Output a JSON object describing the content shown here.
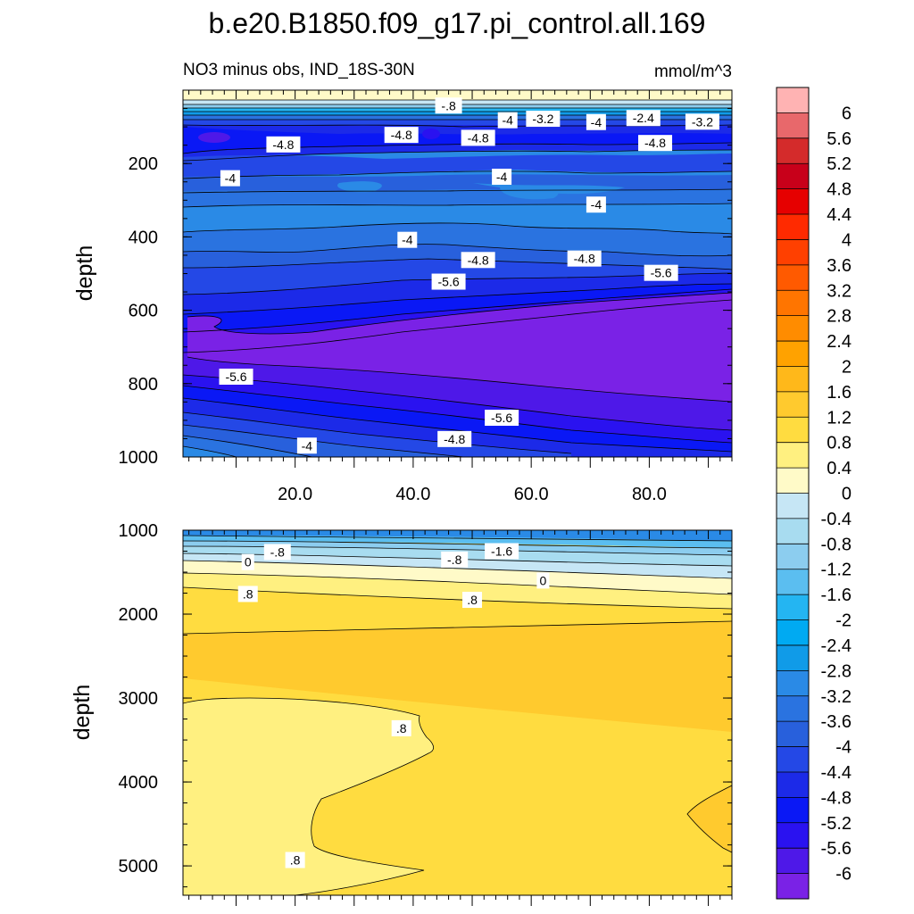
{
  "chart_data": {
    "type": "contour",
    "title": "b.e20.B1850.f09_g17.pi_control.all.169",
    "subtitle_left": "NO3 minus obs, IND_18S-30N",
    "subtitle_right": "mmol/m^3",
    "units": "mmol/m^3",
    "x_tick_labels": [
      "20.0",
      "40.0",
      "60.0",
      "80.0"
    ],
    "x_ticks": [
      20,
      40,
      60,
      80
    ],
    "xlim": [
      1,
      94
    ],
    "colorbar": {
      "labels": [
        "6",
        "5.6",
        "5.2",
        "4.8",
        "4.4",
        "4",
        "3.6",
        "3.2",
        "2.8",
        "2.4",
        "2",
        "1.6",
        "1.2",
        "0.8",
        "0.4",
        "0",
        "-0.4",
        "-0.8",
        "-1.2",
        "-1.6",
        "-2",
        "-2.4",
        "-2.8",
        "-3.2",
        "-3.6",
        "-4",
        "-4.4",
        "-4.8",
        "-5.2",
        "-5.6",
        "-6"
      ],
      "colors": [
        "#ffb3b3",
        "#e8686b",
        "#d42b2b",
        "#c8001a",
        "#e60000",
        "#ff2a00",
        "#ff4000",
        "#ff5a00",
        "#ff7500",
        "#ff8c00",
        "#ffa200",
        "#ffb81a",
        "#ffca2e",
        "#ffdc40",
        "#fff080",
        "#fffac8",
        "#c6e6f5",
        "#a8dcf0",
        "#8ccdef",
        "#5bbef0",
        "#24b5f2",
        "#00aaf2",
        "#109be8",
        "#2a8ae6",
        "#2a73e0",
        "#2860dc",
        "#2448e6",
        "#1c2ae8",
        "#0a18f5",
        "#2a12f0",
        "#4e18e8",
        "#7a22e6"
      ]
    },
    "panels": [
      {
        "name": "upper",
        "ylabel": "depth",
        "ylim": [
          1000,
          0
        ],
        "y_ticks": [
          200,
          400,
          600,
          800,
          1000
        ],
        "y_tick_labels": [
          "200",
          "400",
          "600",
          "800",
          "1000"
        ],
        "contour_labels": [
          {
            "text": "-.8",
            "x": 46,
            "y": 42
          },
          {
            "text": "-4",
            "x": 56,
            "y": 82
          },
          {
            "text": "-3.2",
            "x": 62,
            "y": 78
          },
          {
            "text": "-4",
            "x": 71,
            "y": 87
          },
          {
            "text": "-2.4",
            "x": 79,
            "y": 76
          },
          {
            "text": "-3.2",
            "x": 89,
            "y": 86
          },
          {
            "text": "-4.8",
            "x": 18,
            "y": 148
          },
          {
            "text": "-4.8",
            "x": 38,
            "y": 122
          },
          {
            "text": "-4.8",
            "x": 51,
            "y": 130
          },
          {
            "text": "-4.8",
            "x": 81,
            "y": 144
          },
          {
            "text": "-4",
            "x": 9,
            "y": 240
          },
          {
            "text": "-4",
            "x": 55,
            "y": 236
          },
          {
            "text": "-4",
            "x": 71,
            "y": 312
          },
          {
            "text": "-4",
            "x": 39,
            "y": 408
          },
          {
            "text": "-4.8",
            "x": 51,
            "y": 463
          },
          {
            "text": "-4.8",
            "x": 69,
            "y": 459
          },
          {
            "text": "-5.6",
            "x": 46,
            "y": 522
          },
          {
            "text": "-5.6",
            "x": 82,
            "y": 498
          },
          {
            "text": "-5.6",
            "x": 10,
            "y": 781
          },
          {
            "text": "-5.6",
            "x": 55,
            "y": 893
          },
          {
            "text": "-4.8",
            "x": 47,
            "y": 951
          },
          {
            "text": "-4",
            "x": 22,
            "y": 969
          }
        ]
      },
      {
        "name": "lower",
        "ylabel": "depth",
        "ylim": [
          5350,
          1000
        ],
        "y_ticks": [
          1000,
          2000,
          3000,
          4000,
          5000
        ],
        "y_tick_labels": [
          "1000",
          "2000",
          "3000",
          "4000",
          "5000"
        ],
        "contour_labels": [
          {
            "text": "-.8",
            "x": 17,
            "y": 1260
          },
          {
            "text": "0",
            "x": 12,
            "y": 1380
          },
          {
            "text": "-.8",
            "x": 47,
            "y": 1350
          },
          {
            "text": "-1.6",
            "x": 55,
            "y": 1250
          },
          {
            "text": "0",
            "x": 62,
            "y": 1600
          },
          {
            "text": ".8",
            "x": 12,
            "y": 1760
          },
          {
            "text": ".8",
            "x": 50,
            "y": 1830
          },
          {
            "text": ".8",
            "x": 38,
            "y": 3360
          },
          {
            "text": ".8",
            "x": 20,
            "y": 4930
          }
        ]
      }
    ]
  }
}
